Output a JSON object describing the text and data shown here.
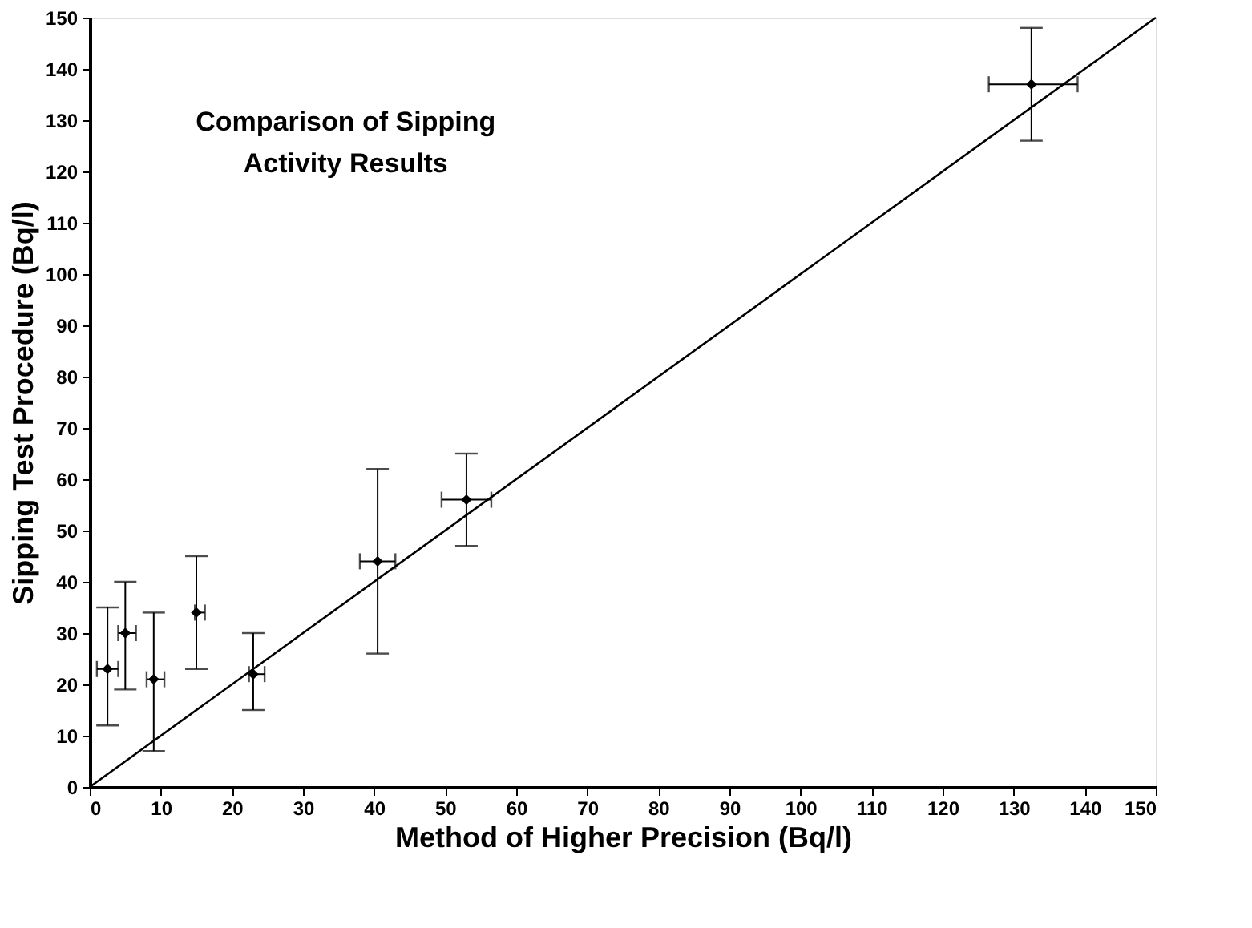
{
  "chart_data": {
    "type": "scatter",
    "title": "Comparison of Sipping\nActivity Results",
    "xlabel": "Method of Higher Precision (Bq/l)",
    "ylabel": "Sipping Test Procedure (Bq/l)",
    "xlim": [
      0,
      150
    ],
    "ylim": [
      0,
      150
    ],
    "xticks": [
      0,
      10,
      20,
      30,
      40,
      50,
      60,
      70,
      80,
      90,
      100,
      110,
      120,
      130,
      140,
      150
    ],
    "yticks": [
      0,
      10,
      20,
      30,
      40,
      50,
      60,
      70,
      80,
      90,
      100,
      110,
      120,
      130,
      140,
      150
    ],
    "grid": false,
    "marker": "diamond",
    "series": [
      {
        "color": "#000000",
        "x": [
          2.5,
          5,
          9,
          15,
          23,
          40.5,
          53,
          132.5
        ],
        "values": [
          23,
          30,
          21,
          34,
          22,
          44,
          56,
          137
        ],
        "errors": [
          [
            12,
            35
          ],
          [
            19,
            40
          ],
          [
            7,
            34
          ],
          [
            23,
            45
          ],
          [
            15,
            30
          ],
          [
            26,
            62
          ],
          [
            47,
            65
          ],
          [
            126,
            148
          ]
        ],
        "xerrors": [
          [
            1,
            4
          ],
          [
            4,
            6.5
          ],
          [
            8,
            10.5
          ],
          [
            14.8,
            16.2
          ],
          [
            22.4,
            24.6
          ],
          [
            38,
            43
          ],
          [
            49.5,
            56.5
          ],
          [
            126.5,
            139
          ]
        ]
      },
      {
        "type": "line",
        "color": "#000000",
        "x": [
          0,
          150
        ],
        "values": [
          0,
          150
        ],
        "marker": "none",
        "line_style": "solid"
      }
    ]
  }
}
